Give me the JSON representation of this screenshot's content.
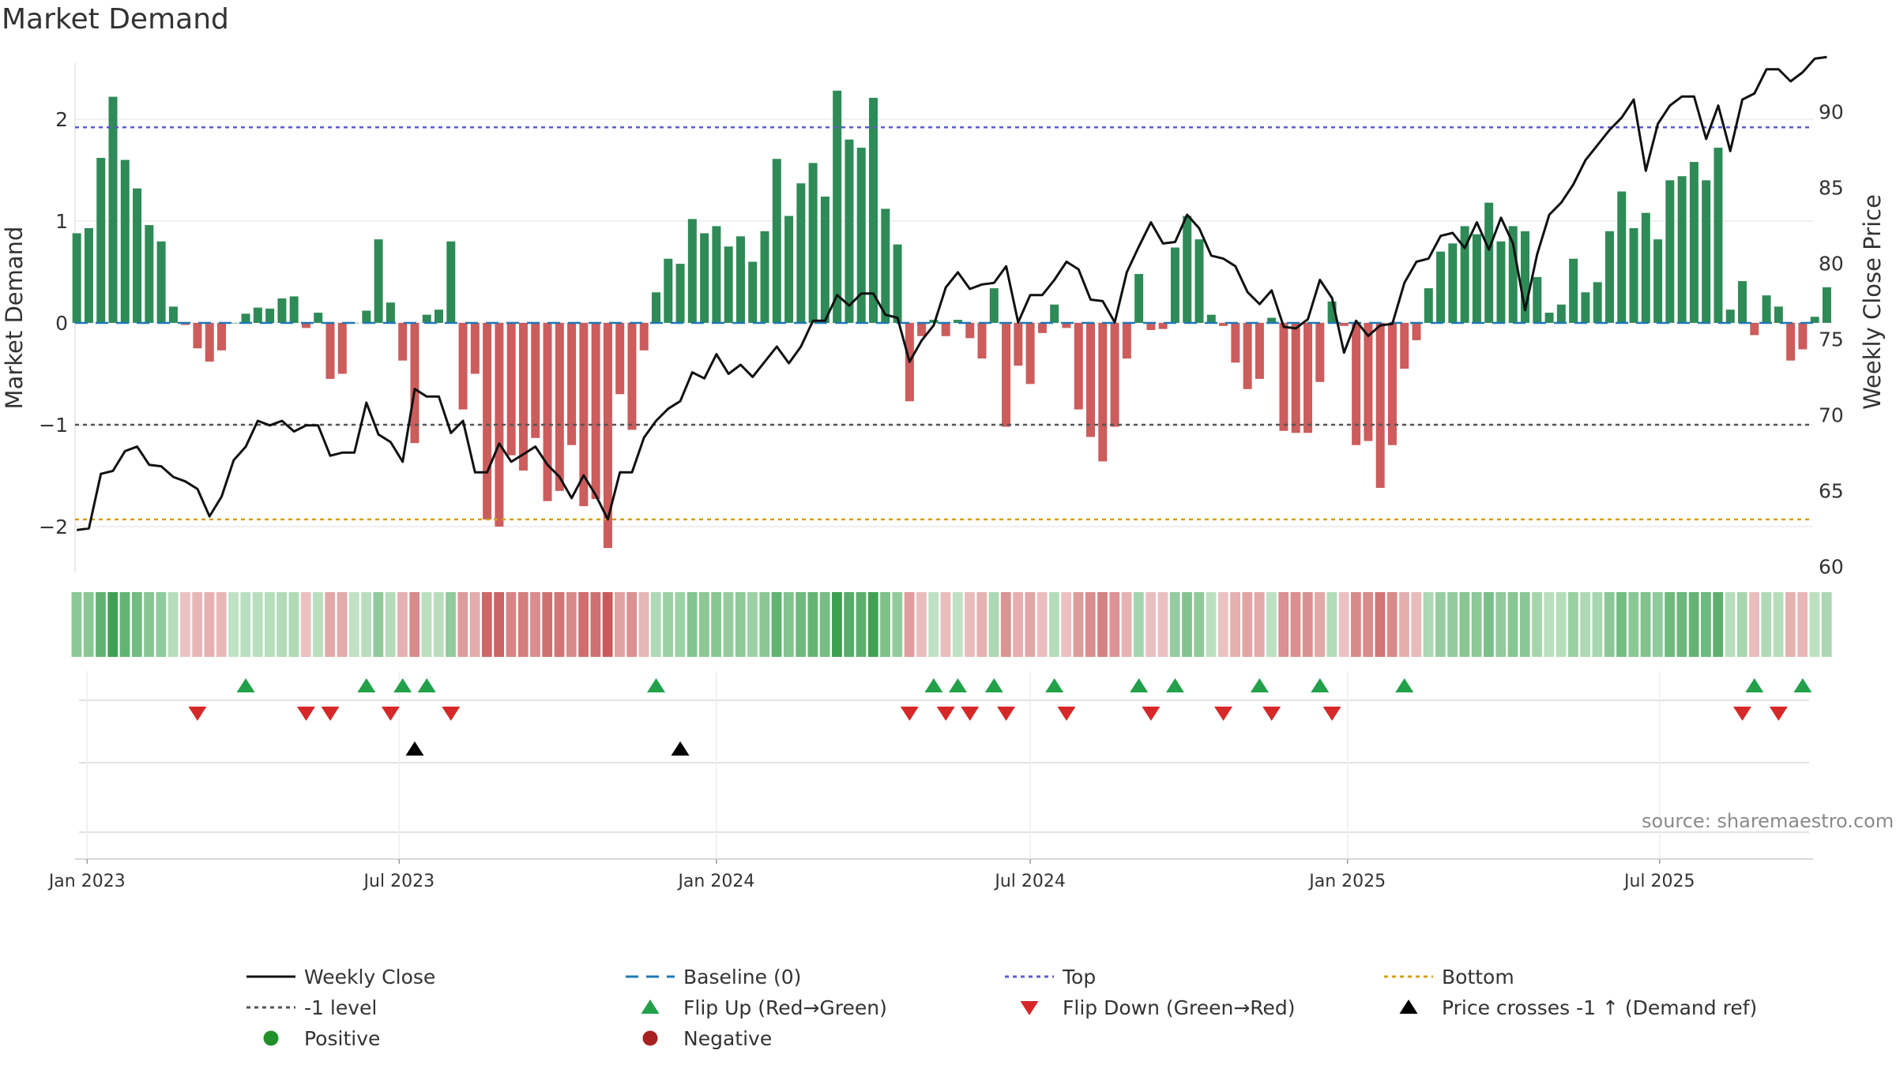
{
  "title": "Market Demand",
  "source": "source: sharemaestro.com",
  "colors": {
    "positive_bar": "#2e8b57",
    "negative_bar": "#cd5c5c",
    "price_line": "#111111",
    "baseline": "#1f77b4",
    "top": "#5c5cc9",
    "bottom": "#d4a017",
    "minus1": "#555555",
    "flip_up": "#22a04a",
    "flip_down": "#d62828",
    "cross": "#000000",
    "positive_dot": "#22902a",
    "negative_dot": "#a82020"
  },
  "chart_data": {
    "type": "bar",
    "title": "Market Demand",
    "xlabel": "",
    "ylabel": "Market Demand",
    "y2label": "Weekly Close Price",
    "ylim": [
      -2.45,
      2.55
    ],
    "y2lim": [
      59.6,
      93.2
    ],
    "yticks": [
      -2,
      -1,
      0,
      1,
      2
    ],
    "yticklabels": [
      "−2",
      "−1",
      "0",
      "1",
      "2"
    ],
    "y2ticks": [
      60,
      65,
      70,
      75,
      80,
      85,
      90
    ],
    "x_start": "2022-12-25",
    "x_end": "2025-09-28",
    "x_ticks": [
      {
        "date": "2023-01-01",
        "label": "Jan 2023"
      },
      {
        "date": "2023-07-01",
        "label": "Jul 2023"
      },
      {
        "date": "2024-01-01",
        "label": "Jan 2024"
      },
      {
        "date": "2024-07-01",
        "label": "Jul 2024"
      },
      {
        "date": "2025-01-01",
        "label": "Jan 2025"
      },
      {
        "date": "2025-07-01",
        "label": "Jul 2025"
      }
    ],
    "first_week": "2022-12-26",
    "top_level": 1.92,
    "bottom_level": -1.93,
    "minus1_level": -1,
    "demand": [
      0.88,
      0.93,
      1.62,
      2.22,
      1.6,
      1.32,
      0.96,
      0.8,
      0.16,
      -0.02,
      -0.25,
      -0.38,
      -0.27,
      0.0,
      0.09,
      0.15,
      0.14,
      0.24,
      0.26,
      -0.05,
      0.1,
      -0.55,
      -0.5,
      0.0,
      0.12,
      0.82,
      0.2,
      -0.37,
      -1.18,
      0.08,
      0.13,
      0.8,
      -0.85,
      -0.5,
      -1.93,
      -2.0,
      -1.3,
      -1.45,
      -1.13,
      -1.75,
      -1.65,
      -1.2,
      -1.8,
      -1.73,
      -2.21,
      -0.7,
      -1.05,
      -0.27,
      0.3,
      0.63,
      0.58,
      1.02,
      0.88,
      0.95,
      0.75,
      0.85,
      0.6,
      0.9,
      1.61,
      1.05,
      1.37,
      1.57,
      1.24,
      2.28,
      1.8,
      1.72,
      2.21,
      1.12,
      0.77,
      -0.77,
      -0.13,
      0.03,
      -0.13,
      0.03,
      -0.15,
      -0.35,
      0.34,
      -1.02,
      -0.42,
      -0.6,
      -0.1,
      0.18,
      -0.05,
      -0.85,
      -1.12,
      -1.36,
      -1.02,
      -0.35,
      0.48,
      -0.07,
      -0.06,
      0.74,
      1.05,
      0.82,
      0.08,
      -0.03,
      -0.39,
      -0.65,
      -0.55,
      0.05,
      -1.06,
      -1.08,
      -1.08,
      -0.58,
      0.21,
      -0.03,
      -1.2,
      -1.16,
      -1.62,
      -1.2,
      -0.45,
      -0.17,
      0.34,
      0.7,
      0.78,
      0.95,
      0.87,
      1.18,
      0.8,
      0.95,
      0.9,
      0.45,
      0.1,
      0.18,
      0.63,
      0.3,
      0.4,
      0.9,
      1.29,
      0.93,
      1.08,
      0.82,
      1.4,
      1.44,
      1.58,
      1.4,
      1.72,
      0.13,
      0.41,
      -0.12,
      0.27,
      0.16,
      -0.37,
      -0.26,
      0.06,
      0.35
    ],
    "price": [
      62.4,
      62.5,
      66.1,
      66.3,
      67.6,
      67.9,
      66.7,
      66.6,
      65.9,
      65.6,
      65.1,
      63.3,
      64.6,
      67,
      67.9,
      69.6,
      69.3,
      69.6,
      68.9,
      69.3,
      69.3,
      67.3,
      67.5,
      67.5,
      70.8,
      68.7,
      68.2,
      66.9,
      71.7,
      71.2,
      71.2,
      68.8,
      69.6,
      66.2,
      66.2,
      68.1,
      66.9,
      67.4,
      67.9,
      66.7,
      65.9,
      64.5,
      66,
      64.7,
      63.1,
      66.2,
      66.2,
      68.5,
      69.6,
      70.4,
      70.9,
      72.8,
      72.4,
      74,
      72.7,
      73.3,
      72.5,
      73.5,
      74.5,
      73.4,
      74.5,
      76.2,
      76.2,
      77.9,
      77.2,
      78,
      78,
      76.6,
      76.4,
      73.5,
      74.9,
      75.9,
      78.4,
      79.4,
      78.3,
      78.6,
      78.7,
      79.8,
      76.1,
      77.9,
      77.9,
      78.9,
      80.1,
      79.6,
      77.6,
      77.5,
      76.1,
      79.4,
      81.1,
      82.7,
      81.3,
      81.4,
      83.2,
      82.3,
      80.5,
      80.3,
      79.8,
      78.1,
      77.3,
      78.2,
      75.8,
      75.7,
      76.3,
      78.9,
      77.7,
      74.1,
      76.2,
      75.2,
      75.9,
      76,
      78.7,
      80.1,
      80.3,
      81.8,
      82,
      81,
      82.7,
      80.9,
      83,
      81.3,
      76.9,
      80.6,
      83.2,
      84,
      85.2,
      86.8,
      87.8,
      88.8,
      89.6,
      90.8,
      86.1,
      89.2,
      90.4,
      91,
      91,
      88.2,
      90.4,
      87.4,
      90.8,
      91.2,
      92.8,
      92.8,
      92,
      92.6,
      93.5,
      93.6
    ],
    "flip_up_weeks": [
      14,
      24,
      27,
      29,
      48,
      71,
      73,
      76,
      81,
      88,
      91,
      98,
      103,
      110,
      139,
      143
    ],
    "flip_down_weeks": [
      10,
      19,
      21,
      26,
      31,
      69,
      72,
      74,
      77,
      82,
      89,
      95,
      99,
      104,
      138,
      141
    ],
    "cross_weeks": [
      28,
      50
    ],
    "legend": [
      {
        "key": "weekly-close",
        "label": "Weekly Close"
      },
      {
        "key": "baseline",
        "label": "Baseline (0)"
      },
      {
        "key": "top",
        "label": "Top"
      },
      {
        "key": "bottom",
        "label": "Bottom"
      },
      {
        "key": "minus1",
        "label": "-1 level"
      },
      {
        "key": "flip-up",
        "label": "Flip Up (Red→Green)"
      },
      {
        "key": "flip-down",
        "label": "Flip Down (Green→Red)"
      },
      {
        "key": "cross",
        "label": "Price crosses -1 ↑ (Demand ref)"
      },
      {
        "key": "positive",
        "label": "Positive"
      },
      {
        "key": "negative",
        "label": "Negative"
      }
    ]
  }
}
